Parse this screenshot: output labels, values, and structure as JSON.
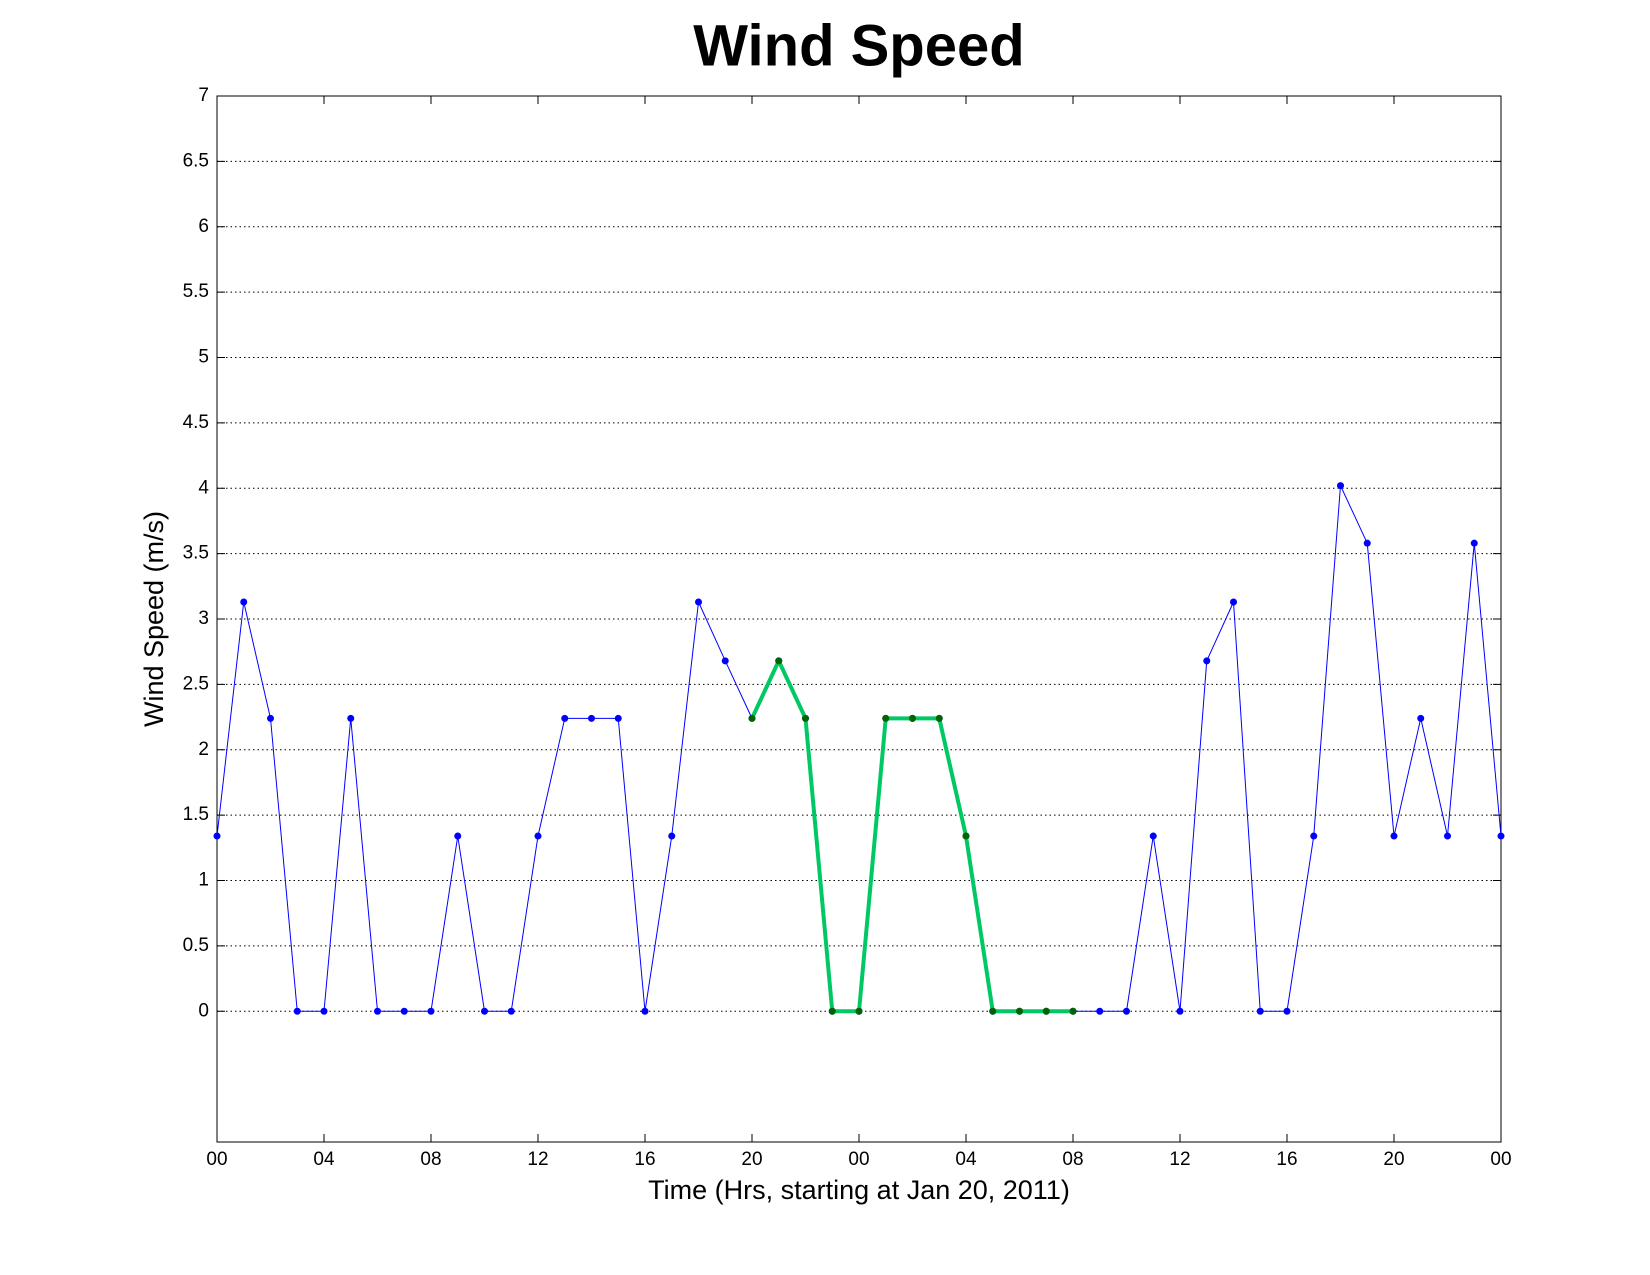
{
  "chart_data": {
    "type": "line",
    "title": "Wind Speed",
    "x_label": "Time (Hrs, starting at Jan 20, 2011)",
    "y_label": "Wind Speed (m/s)",
    "x": [
      0,
      1,
      2,
      3,
      4,
      5,
      6,
      7,
      8,
      9,
      10,
      11,
      12,
      13,
      14,
      15,
      16,
      17,
      18,
      19,
      20,
      21,
      22,
      23,
      24,
      25,
      26,
      27,
      28,
      29,
      30,
      31,
      32,
      33,
      34,
      35,
      36,
      37,
      38,
      39,
      40,
      41,
      42,
      43,
      44,
      45,
      46,
      47,
      48
    ],
    "series": [
      {
        "color": "#0000ff",
        "marker_color": "#0000ff",
        "line_width": 1,
        "values": [
          1.34,
          3.13,
          2.24,
          0,
          0,
          2.24,
          0,
          0,
          0,
          1.34,
          0,
          0,
          1.34,
          2.24,
          2.24,
          2.24,
          0,
          1.34,
          3.13,
          2.68,
          2.24,
          2.68,
          2.24,
          0,
          0,
          2.24,
          2.24,
          2.24,
          1.34,
          0,
          0,
          0,
          0,
          0,
          0,
          1.34,
          0,
          2.68,
          3.13,
          0,
          0,
          1.34,
          4.02,
          3.58,
          1.34,
          2.24,
          1.34,
          3.58,
          1.34
        ]
      },
      {
        "color": "#00c864",
        "marker_color": "#006400",
        "line_width": 4,
        "values": [
          null,
          null,
          null,
          null,
          null,
          null,
          null,
          null,
          null,
          null,
          null,
          null,
          null,
          null,
          null,
          null,
          null,
          null,
          null,
          null,
          2.24,
          2.68,
          2.24,
          0,
          0,
          2.24,
          2.24,
          2.24,
          1.34,
          0,
          0,
          0,
          0,
          null,
          null,
          null,
          null,
          null,
          null,
          null,
          null,
          null,
          null,
          null,
          null,
          null,
          null,
          null,
          null
        ]
      }
    ],
    "xlim": [
      0,
      48
    ],
    "xticks": [
      {
        "value": 0,
        "label": "00"
      },
      {
        "value": 4,
        "label": "04"
      },
      {
        "value": 8,
        "label": "08"
      },
      {
        "value": 12,
        "label": "12"
      },
      {
        "value": 16,
        "label": "16"
      },
      {
        "value": 20,
        "label": "20"
      },
      {
        "value": 24,
        "label": "00"
      },
      {
        "value": 28,
        "label": "04"
      },
      {
        "value": 32,
        "label": "08"
      },
      {
        "value": 36,
        "label": "12"
      },
      {
        "value": 40,
        "label": "16"
      },
      {
        "value": 44,
        "label": "20"
      },
      {
        "value": 48,
        "label": "00"
      }
    ],
    "ylim": [
      -1,
      7
    ],
    "yticks": [
      0,
      0.5,
      1,
      1.5,
      2,
      2.5,
      3,
      3.5,
      4,
      4.5,
      5,
      5.5,
      6,
      6.5,
      7
    ],
    "grid": true
  }
}
